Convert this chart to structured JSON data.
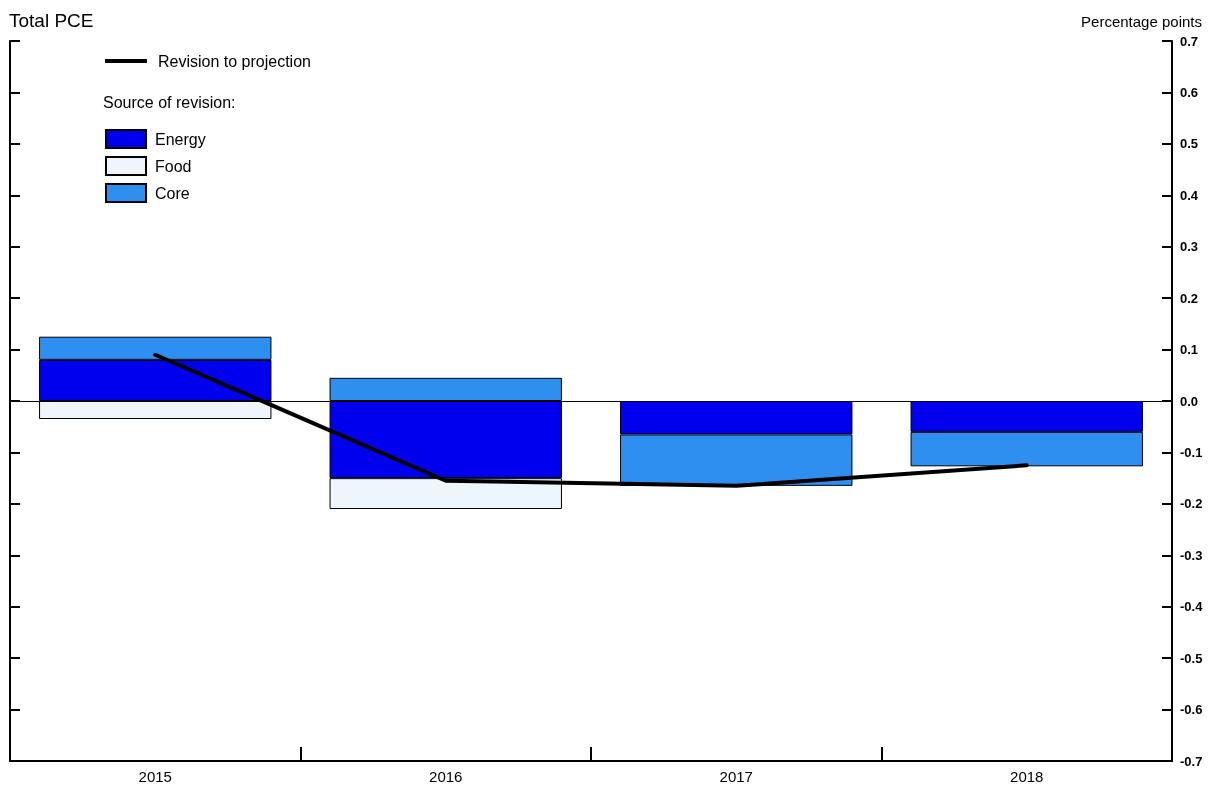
{
  "chart_data": {
    "type": "bar",
    "title": "Total PCE",
    "ylabel": "Percentage points",
    "legend_title": "Source of revision:",
    "categories": [
      "2015",
      "2016",
      "2017",
      "2018"
    ],
    "stacked": true,
    "series": [
      {
        "name": "Revision to projection",
        "type": "line",
        "color": "#000000",
        "values": [
          0.09,
          -0.155,
          -0.165,
          -0.125
        ],
        "marker": "none",
        "line_style": "solid"
      },
      {
        "name": "Energy",
        "color": "#0000ee",
        "values": [
          0.08,
          -0.15,
          -0.065,
          -0.06
        ]
      },
      {
        "name": "Food",
        "color": "#eef6fc",
        "values": [
          -0.035,
          -0.06,
          null,
          null
        ]
      },
      {
        "name": "Core",
        "color": "#2e8ff0",
        "values": [
          0.045,
          0.045,
          -0.1,
          -0.067
        ]
      }
    ],
    "ylim": [
      -0.7,
      0.7
    ],
    "yticks": [
      {
        "value": -0.7,
        "label": "-0.7"
      },
      {
        "value": -0.6,
        "label": "-0.6"
      },
      {
        "value": -0.5,
        "label": "-0.5"
      },
      {
        "value": -0.4,
        "label": "-0.4"
      },
      {
        "value": -0.3,
        "label": "-0.3"
      },
      {
        "value": -0.2,
        "label": "-0.2"
      },
      {
        "value": -0.1,
        "label": "-0.1"
      },
      {
        "value": 0,
        "label": "0.0"
      },
      {
        "value": 0.1,
        "label": "0.1"
      },
      {
        "value": 0.2,
        "label": "0.2"
      },
      {
        "value": 0.3,
        "label": "0.3"
      },
      {
        "value": 0.4,
        "label": "0.4"
      },
      {
        "value": 0.5,
        "label": "0.5"
      },
      {
        "value": 0.6,
        "label": "0.6"
      },
      {
        "value": 0.7,
        "label": "0.7"
      }
    ],
    "ref_lines": [
      {
        "axis": "y",
        "value": 0,
        "color": "#000000",
        "line_style": "solid"
      }
    ],
    "grid": false,
    "legend": "top left"
  }
}
